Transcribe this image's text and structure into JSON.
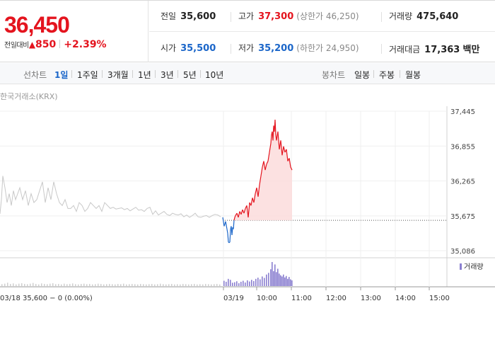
{
  "header": {
    "current_price": "36,450",
    "change_label": "전일대비",
    "change_arrow": "▲",
    "change_value": "850",
    "change_percent": "+2.39%"
  },
  "stats": {
    "prev_close_label": "전일",
    "prev_close": "35,600",
    "high_label": "고가",
    "high": "37,300",
    "upper_limit": "(상한가 46,250)",
    "volume_label": "거래량",
    "volume": "475,640",
    "open_label": "시가",
    "open": "35,500",
    "low_label": "저가",
    "low": "35,200",
    "lower_limit": "(하한가 24,950)",
    "amount_label": "거래대금",
    "amount": "17,363",
    "amount_unit": "백만"
  },
  "tabs": {
    "line_label": "선차트",
    "line_items": [
      "1일",
      "1주일",
      "3개월",
      "1년",
      "3년",
      "5년",
      "10년"
    ],
    "candle_label": "봉차트",
    "candle_items": [
      "일봉",
      "주봉",
      "월봉"
    ],
    "active": "1일"
  },
  "chart_data": {
    "type": "line",
    "source": "한국거래소(KRX)",
    "y_ticks": [
      "37,445",
      "36,855",
      "36,265",
      "35,675",
      "35,086"
    ],
    "ylim": [
      35086,
      37445
    ],
    "x_ticks": [
      "03/19",
      "10:00",
      "11:00",
      "12:00",
      "13:00",
      "14:00",
      "15:00"
    ],
    "reference_line": 35600,
    "volume_legend": "거래량",
    "footer": "03/18  35,600 − 0 (0.00%)",
    "colors": {
      "up": "#e4141e",
      "down": "#1b66c9",
      "prev": "#c8c8c8",
      "fill": "#fbdcdc"
    },
    "series": [
      {
        "x": [
          0,
          2,
          4,
          7,
          10,
          13,
          16,
          19,
          22,
          25,
          28,
          32,
          36,
          40,
          44,
          48,
          52,
          56,
          60,
          64,
          68,
          72,
          76,
          80,
          84,
          88,
          92,
          96,
          100,
          104,
          108,
          112,
          116,
          120,
          124,
          128,
          132,
          136,
          140,
          144,
          148,
          152,
          156,
          160,
          164,
          168,
          172,
          176,
          180,
          184,
          188,
          192,
          196,
          200,
          204,
          208,
          212,
          216,
          220,
          224,
          228,
          232,
          236,
          240,
          244,
          248,
          252,
          256,
          260,
          264,
          268,
          272,
          276,
          280,
          284,
          288,
          292,
          296,
          300,
          304,
          308,
          312
        ],
        "values": [
          35710,
          35950,
          36350,
          36150,
          35900,
          36050,
          35850,
          36100,
          35950,
          36050,
          36150,
          35950,
          36100,
          35850,
          36050,
          35900,
          35950,
          36100,
          36250,
          35900,
          36150,
          35950,
          36250,
          36050,
          35900,
          35850,
          35950,
          35800,
          35800,
          35850,
          35750,
          35900,
          35850,
          35750,
          35800,
          35900,
          35850,
          35800,
          35850,
          35750,
          35900,
          35850,
          35800,
          35820,
          35790,
          35800,
          35810,
          35780,
          35800,
          35760,
          35790,
          35820,
          35770,
          35780,
          35750,
          35800,
          35820,
          35700,
          35760,
          35690,
          35720,
          35750,
          35700,
          35680,
          35720,
          35700,
          35690,
          35710,
          35660,
          35690,
          35650,
          35680,
          35720,
          35660,
          35650,
          35670,
          35680,
          35650,
          35680,
          35700,
          35690,
          35660
        ]
      },
      {
        "x": [
          315,
          317,
          319,
          321,
          322,
          323,
          324,
          325,
          326,
          327,
          328,
          329,
          330,
          331,
          332,
          333,
          335,
          337,
          339,
          341,
          343,
          345,
          347,
          349,
          351,
          353,
          355,
          357,
          359,
          361,
          363,
          365,
          367,
          369,
          371,
          373,
          375,
          377,
          379,
          381,
          383,
          384,
          385,
          386,
          387,
          388,
          389,
          390,
          391,
          393,
          395,
          397,
          399,
          401,
          403,
          405,
          407,
          409,
          411,
          413
        ],
        "values": [
          35650,
          35500,
          35580,
          35450,
          35380,
          35230,
          35220,
          35230,
          35450,
          35500,
          35350,
          35480,
          35450,
          35600,
          35650,
          35680,
          35720,
          35650,
          35750,
          35700,
          35780,
          35720,
          35800,
          35850,
          35650,
          35900,
          35850,
          35980,
          35900,
          36050,
          36150,
          36000,
          36200,
          36350,
          36500,
          36600,
          36450,
          36550,
          36600,
          36750,
          36900,
          37050,
          37100,
          36950,
          37200,
          37100,
          37300,
          37050,
          36950,
          37100,
          36800,
          36950,
          36700,
          36850,
          36750,
          36800,
          36600,
          36650,
          36500,
          36450
        ]
      }
    ],
    "volume": {
      "x": [
        2,
        6,
        10,
        14,
        18,
        22,
        26,
        30,
        34,
        38,
        42,
        46,
        50,
        54,
        58,
        62,
        66,
        70,
        74,
        78,
        82,
        86,
        90,
        94,
        98,
        102,
        106,
        110,
        114,
        118,
        122,
        126,
        130,
        134,
        138,
        142,
        146,
        150,
        154,
        158,
        162,
        166,
        170,
        174,
        178,
        182,
        186,
        190,
        194,
        198,
        202,
        206,
        210,
        214,
        218,
        222,
        226,
        230,
        234,
        238,
        242,
        246,
        250,
        254,
        258,
        262,
        266,
        270,
        274,
        278,
        282,
        286,
        290,
        294,
        298,
        302,
        306,
        310
      ],
      "values": [
        8,
        10,
        14,
        9,
        11,
        7,
        10,
        12,
        9,
        8,
        10,
        13,
        9,
        7,
        11,
        9,
        8,
        10,
        12,
        8,
        9,
        7,
        10,
        8,
        9,
        11,
        8,
        7,
        9,
        10,
        8,
        9,
        7,
        8,
        10,
        9,
        7,
        8,
        9,
        8,
        7,
        9,
        8,
        10,
        7,
        8,
        9,
        8,
        7,
        9,
        8,
        7,
        8,
        9,
        7,
        8,
        10,
        8,
        7,
        8,
        9,
        7,
        8,
        7,
        9,
        8,
        7,
        8,
        9,
        7,
        8,
        7,
        9,
        8,
        7,
        8,
        9,
        7
      ],
      "x2": [
        316,
        319,
        322,
        325,
        328,
        331,
        334,
        337,
        340,
        343,
        346,
        349,
        352,
        355,
        358,
        361,
        364,
        367,
        370,
        373,
        376,
        379,
        382,
        384,
        386,
        388,
        390,
        392,
        394,
        396,
        398,
        400,
        402,
        404,
        406,
        408,
        410,
        412
      ],
      "values2": [
        22,
        18,
        30,
        26,
        14,
        16,
        20,
        12,
        18,
        22,
        15,
        24,
        19,
        26,
        21,
        30,
        35,
        28,
        40,
        34,
        48,
        55,
        70,
        100,
        62,
        90,
        58,
        72,
        52,
        45,
        40,
        48,
        36,
        42,
        30,
        38,
        28,
        24
      ],
      "max": 100
    }
  }
}
